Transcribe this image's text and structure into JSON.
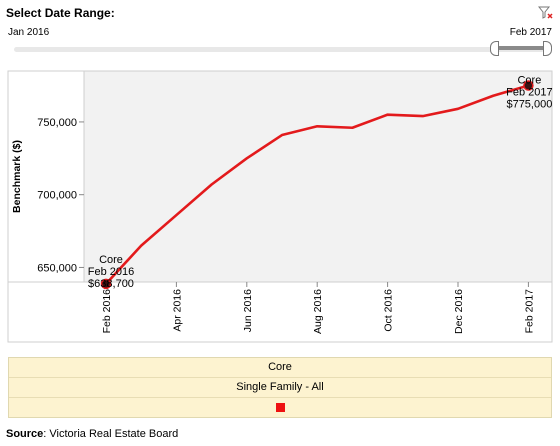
{
  "filter": {
    "title": "Select Date Range:",
    "start_label": "Jan 2016",
    "end_label": "Feb 2017",
    "icon": "filter-clear-icon"
  },
  "chart_data": {
    "type": "line",
    "ylabel": "Benchmark ($)",
    "xlabel": "",
    "x": [
      "2016-02",
      "2016-03",
      "2016-04",
      "2016-05",
      "2016-06",
      "2016-07",
      "2016-08",
      "2016-09",
      "2016-10",
      "2016-11",
      "2016-12",
      "2017-01",
      "2017-02"
    ],
    "x_tick_labels": [
      "Feb 2016",
      "Apr 2016",
      "Jun 2016",
      "Aug 2016",
      "Oct 2016",
      "Dec 2016",
      "Feb 2017"
    ],
    "y_tick_labels": [
      "650,000",
      "700,000",
      "750,000"
    ],
    "y_ticks": [
      650000,
      700000,
      750000
    ],
    "ylim": [
      640000,
      785000
    ],
    "series": [
      {
        "name": "Core",
        "color": "#e31a1c",
        "values": [
          638700,
          665000,
          686000,
          707000,
          725000,
          741000,
          747000,
          746000,
          755000,
          754000,
          759000,
          768000,
          775000
        ]
      }
    ],
    "annotations": [
      {
        "point_index": 0,
        "lines": [
          "Core",
          "Feb 2016",
          "$638,700"
        ]
      },
      {
        "point_index": 12,
        "lines": [
          "Core",
          "Feb 2017",
          "$775,000"
        ]
      }
    ],
    "grid": false
  },
  "legend": {
    "row1": "Core",
    "row2": "Single Family - All",
    "swatch_color": "#ee1111"
  },
  "source": {
    "label": "Source",
    "text": ": Victoria Real Estate Board"
  }
}
